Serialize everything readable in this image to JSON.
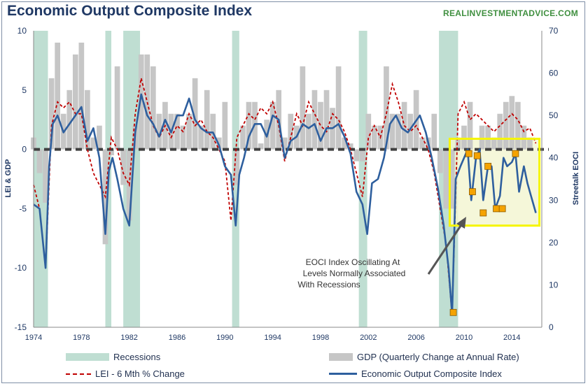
{
  "title": "Economic Output Composite Index",
  "watermark": "REALINVESTMENTADVICE.COM",
  "legend": {
    "recessions": "Recessions",
    "gdp": "GDP (Quarterly Change at Annual Rate)",
    "lei": "LEI - 6 Mth % Change",
    "eoci": "Economic Output Composite Index"
  },
  "annotation": {
    "lines": [
      "EOCI Index Oscillating At",
      "Levels Normally Associated",
      "With Recessions"
    ]
  },
  "colors": {
    "recession": "#bfded2",
    "gdp": "#c6c6c6",
    "lei": "#c00000",
    "eoci": "#2e5f9e",
    "zero_line": "#404040",
    "highlight_border": "#f5f500",
    "highlight_fill": "#f3f5cf",
    "marker": "#f5a300"
  },
  "chart_data": {
    "type": "line",
    "x_ticks": [
      "1974",
      "1978",
      "1982",
      "1986",
      "1990",
      "1994",
      "1998",
      "2002",
      "2006",
      "2010",
      "2014"
    ],
    "xlim": [
      1974,
      2016.5
    ],
    "y_left": {
      "label": "LEI & GDP",
      "ylim": [
        -15,
        10
      ],
      "ticks": [
        "10",
        "5",
        "0",
        "-5",
        "-10",
        "-15"
      ]
    },
    "y_right": {
      "label": "Streetalk EOCI",
      "ylim": [
        0,
        70
      ],
      "ticks": [
        "70",
        "60",
        "50",
        "40",
        "30",
        "20",
        "10",
        "0"
      ]
    },
    "recessions": [
      [
        1974.0,
        1975.2
      ],
      [
        1980.0,
        1980.5
      ],
      [
        1981.5,
        1982.9
      ],
      [
        1990.6,
        1991.2
      ],
      [
        2001.2,
        2001.9
      ],
      [
        2007.9,
        2009.5
      ]
    ],
    "highlight_box": {
      "x": [
        2008.8,
        2016.3
      ],
      "y_right": [
        24,
        44.5
      ]
    },
    "series": [
      {
        "name": "Economic Output Composite Index",
        "axis": "right",
        "x": [
          1974,
          1974.5,
          1975.0,
          1975.3,
          1975.6,
          1976,
          1976.5,
          1977,
          1977.5,
          1978,
          1978.5,
          1979,
          1979.5,
          1980,
          1980.3,
          1980.6,
          1981,
          1981.5,
          1982,
          1982.5,
          1983,
          1983.5,
          1984,
          1984.5,
          1985,
          1985.5,
          1986,
          1986.5,
          1987,
          1987.5,
          1988,
          1988.5,
          1989,
          1989.5,
          1990,
          1990.5,
          1990.9,
          1991.2,
          1991.6,
          1992,
          1992.5,
          1993,
          1993.5,
          1994,
          1994.5,
          1995,
          1995.5,
          1996,
          1996.5,
          1997,
          1997.5,
          1998,
          1998.5,
          1999,
          1999.5,
          2000,
          2000.5,
          2001,
          2001.5,
          2001.9,
          2002.3,
          2002.8,
          2003.3,
          2003.8,
          2004.3,
          2004.8,
          2005.3,
          2005.8,
          2006.3,
          2006.8,
          2007.3,
          2007.8,
          2008.3,
          2008.7,
          2009.0,
          2009.3,
          2009.7,
          2010.0,
          2010.3,
          2010.6,
          2011.0,
          2011.3,
          2011.6,
          2012.0,
          2012.3,
          2012.6,
          2013.0,
          2013.3,
          2013.6,
          2014.0,
          2014.3,
          2014.6,
          2015.0,
          2015.3,
          2015.6,
          2016.0
        ],
        "y": [
          29,
          28,
          14,
          38,
          48,
          50,
          46,
          48,
          50,
          52,
          44,
          47,
          40,
          22,
          37,
          40,
          35,
          28,
          24,
          46,
          55,
          50,
          48,
          45,
          49,
          46,
          50,
          50,
          54,
          49,
          47,
          46,
          46,
          43,
          38,
          36,
          24,
          36,
          40,
          45,
          48,
          48,
          45,
          50,
          49,
          40,
          44,
          45,
          48,
          47,
          48,
          44,
          47,
          47,
          48,
          45,
          41,
          32,
          29,
          22,
          34,
          35,
          40,
          48,
          50,
          47,
          46,
          48,
          50,
          46,
          40,
          33,
          24,
          14,
          3,
          35,
          38,
          40,
          42,
          30,
          40,
          42,
          30,
          38,
          38,
          28,
          31,
          40,
          38,
          39,
          41,
          32,
          38,
          34,
          31,
          27
        ]
      },
      {
        "name": "LEI - 6 Mth % Change",
        "axis": "left",
        "x": [
          1974,
          1974.5,
          1975.0,
          1975.5,
          1976,
          1976.5,
          1977,
          1977.5,
          1978,
          1978.5,
          1979,
          1979.5,
          1980,
          1980.5,
          1981,
          1981.5,
          1982,
          1982.5,
          1983,
          1983.5,
          1984,
          1984.5,
          1985,
          1985.5,
          1986,
          1986.5,
          1987,
          1987.5,
          1988,
          1988.5,
          1989,
          1989.5,
          1990,
          1990.5,
          1991.0,
          1991.5,
          1992,
          1992.5,
          1993,
          1993.5,
          1994,
          1994.5,
          1995,
          1995.5,
          1996,
          1996.5,
          1997,
          1997.5,
          1998,
          1998.5,
          1999,
          1999.5,
          2000,
          2000.5,
          2001,
          2001.5,
          2002,
          2002.5,
          2003,
          2003.5,
          2004,
          2004.5,
          2005,
          2005.5,
          2006,
          2006.5,
          2007,
          2007.5,
          2008,
          2008.5,
          2009.0,
          2009.5,
          2010,
          2010.5,
          2011,
          2011.5,
          2012,
          2012.5,
          2013,
          2013.5,
          2014,
          2014.5,
          2015,
          2015.5,
          2016
        ],
        "y": [
          -3,
          -5,
          -10,
          2,
          4,
          3.5,
          4,
          3,
          3,
          0,
          -2,
          -3,
          -4,
          1,
          0,
          -2,
          -3,
          3,
          6,
          4,
          2,
          1,
          2,
          1,
          2,
          1.5,
          3,
          2,
          2.5,
          1.5,
          1,
          0,
          -1,
          -6,
          1,
          2,
          3,
          2.5,
          3.5,
          3,
          4,
          2,
          -1,
          1,
          3,
          2,
          4,
          3,
          2,
          1.5,
          3,
          2.5,
          1.5,
          0,
          -2,
          -4,
          1,
          2,
          1,
          3,
          5.5,
          4,
          2,
          1.5,
          2,
          1,
          0,
          -2,
          -5,
          -8,
          -14,
          3,
          4,
          2.5,
          3,
          2.5,
          2,
          1.5,
          2,
          2.5,
          3,
          2.5,
          1.5,
          1.8,
          0.5
        ]
      },
      {
        "name": "GDP (Quarterly Change at Annual Rate)",
        "axis": "left",
        "x": [
          1974,
          1974.5,
          1975,
          1975.5,
          1976,
          1976.5,
          1977,
          1977.5,
          1978,
          1978.5,
          1979,
          1979.5,
          1980,
          1980.5,
          1981,
          1981.5,
          1982,
          1982.5,
          1983,
          1983.5,
          1984,
          1984.5,
          1985,
          1985.5,
          1986,
          1986.5,
          1987,
          1987.5,
          1988,
          1988.5,
          1989,
          1989.5,
          1990,
          1990.5,
          1991,
          1991.5,
          1992,
          1992.5,
          1993,
          1993.5,
          1994,
          1994.5,
          1995,
          1995.5,
          1996,
          1996.5,
          1997,
          1997.5,
          1998,
          1998.5,
          1999,
          1999.5,
          2000,
          2000.5,
          2001,
          2001.5,
          2002,
          2002.5,
          2003,
          2003.5,
          2004,
          2004.5,
          2005,
          2005.5,
          2006,
          2006.5,
          2007,
          2007.5,
          2008,
          2008.5,
          2009,
          2009.5,
          2010,
          2010.5,
          2011,
          2011.5,
          2012,
          2012.5,
          2013,
          2013.5,
          2014,
          2014.5,
          2015,
          2015.5
        ],
        "y": [
          1,
          -2,
          -4.5,
          6,
          9,
          3,
          5,
          8,
          9,
          5,
          1,
          2,
          -8,
          -0.5,
          7,
          -3,
          -6,
          2,
          8,
          8,
          7,
          3,
          4,
          3,
          3,
          2,
          3,
          6,
          2,
          5,
          3,
          1,
          4,
          0,
          -3,
          2,
          4,
          4,
          0.5,
          2.5,
          4,
          5,
          1,
          3,
          2,
          7,
          3,
          5,
          4,
          5,
          3.5,
          7,
          1,
          0.5,
          -1,
          -1,
          3,
          2,
          2,
          7,
          3,
          3,
          4,
          3,
          5,
          1,
          1,
          3,
          -2,
          -5,
          -5,
          1,
          2,
          4,
          0,
          2,
          2,
          1,
          3,
          4,
          4.5,
          4,
          2,
          1
        ]
      }
    ],
    "markers": {
      "axis": "right",
      "x": [
        2009.1,
        2010.4,
        2010.7,
        2011.1,
        2011.6,
        2012.0,
        2012.7,
        2013.2,
        2014.3
      ],
      "y": [
        3.5,
        41,
        32,
        40.5,
        27,
        38,
        28,
        28,
        41
      ]
    }
  }
}
